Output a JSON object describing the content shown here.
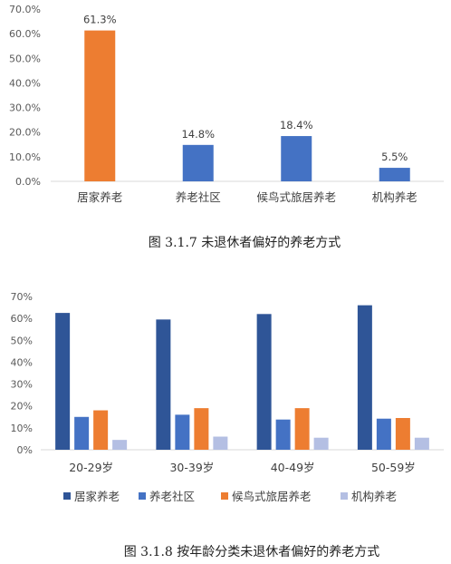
{
  "chart_data": [
    {
      "type": "bar",
      "categories": [
        "居家养老",
        "养老社区",
        "候鸟式旅居养老",
        "机构养老"
      ],
      "values": [
        61.3,
        14.8,
        18.4,
        5.5
      ],
      "data_labels": [
        "61.3%",
        "14.8%",
        "18.4%",
        "5.5%"
      ],
      "bar_colors": [
        "#ED7D31",
        "#4472C4",
        "#4472C4",
        "#4472C4"
      ],
      "yticks": [
        "0.0%",
        "10.0%",
        "20.0%",
        "30.0%",
        "40.0%",
        "50.0%",
        "60.0%",
        "70.0%"
      ],
      "ylim": [
        0,
        70
      ],
      "grid": false,
      "caption": "图 3.1.7  未退休者偏好的养老方式"
    },
    {
      "type": "bar",
      "categories": [
        "20-29岁",
        "30-39岁",
        "40-49岁",
        "50-59岁"
      ],
      "series": [
        {
          "name": "居家养老",
          "color": "#2F5597",
          "values": [
            62.5,
            59.5,
            62,
            66
          ]
        },
        {
          "name": "养老社区",
          "color": "#4472C4",
          "values": [
            15,
            16,
            13.8,
            14.2
          ]
        },
        {
          "name": "候鸟式旅居养老",
          "color": "#ED7D31",
          "values": [
            18,
            19,
            19,
            14.5
          ]
        },
        {
          "name": "机构养老",
          "color": "#B4BFE3",
          "values": [
            4.5,
            6,
            5.5,
            5.5
          ]
        }
      ],
      "yticks": [
        "0%",
        "10%",
        "20%",
        "30%",
        "40%",
        "50%",
        "60%",
        "70%"
      ],
      "ylim": [
        0,
        70
      ],
      "grid": false,
      "legend_position": "bottom",
      "caption": "图 3.1.8  按年龄分类未退休者偏好的养老方式"
    }
  ]
}
